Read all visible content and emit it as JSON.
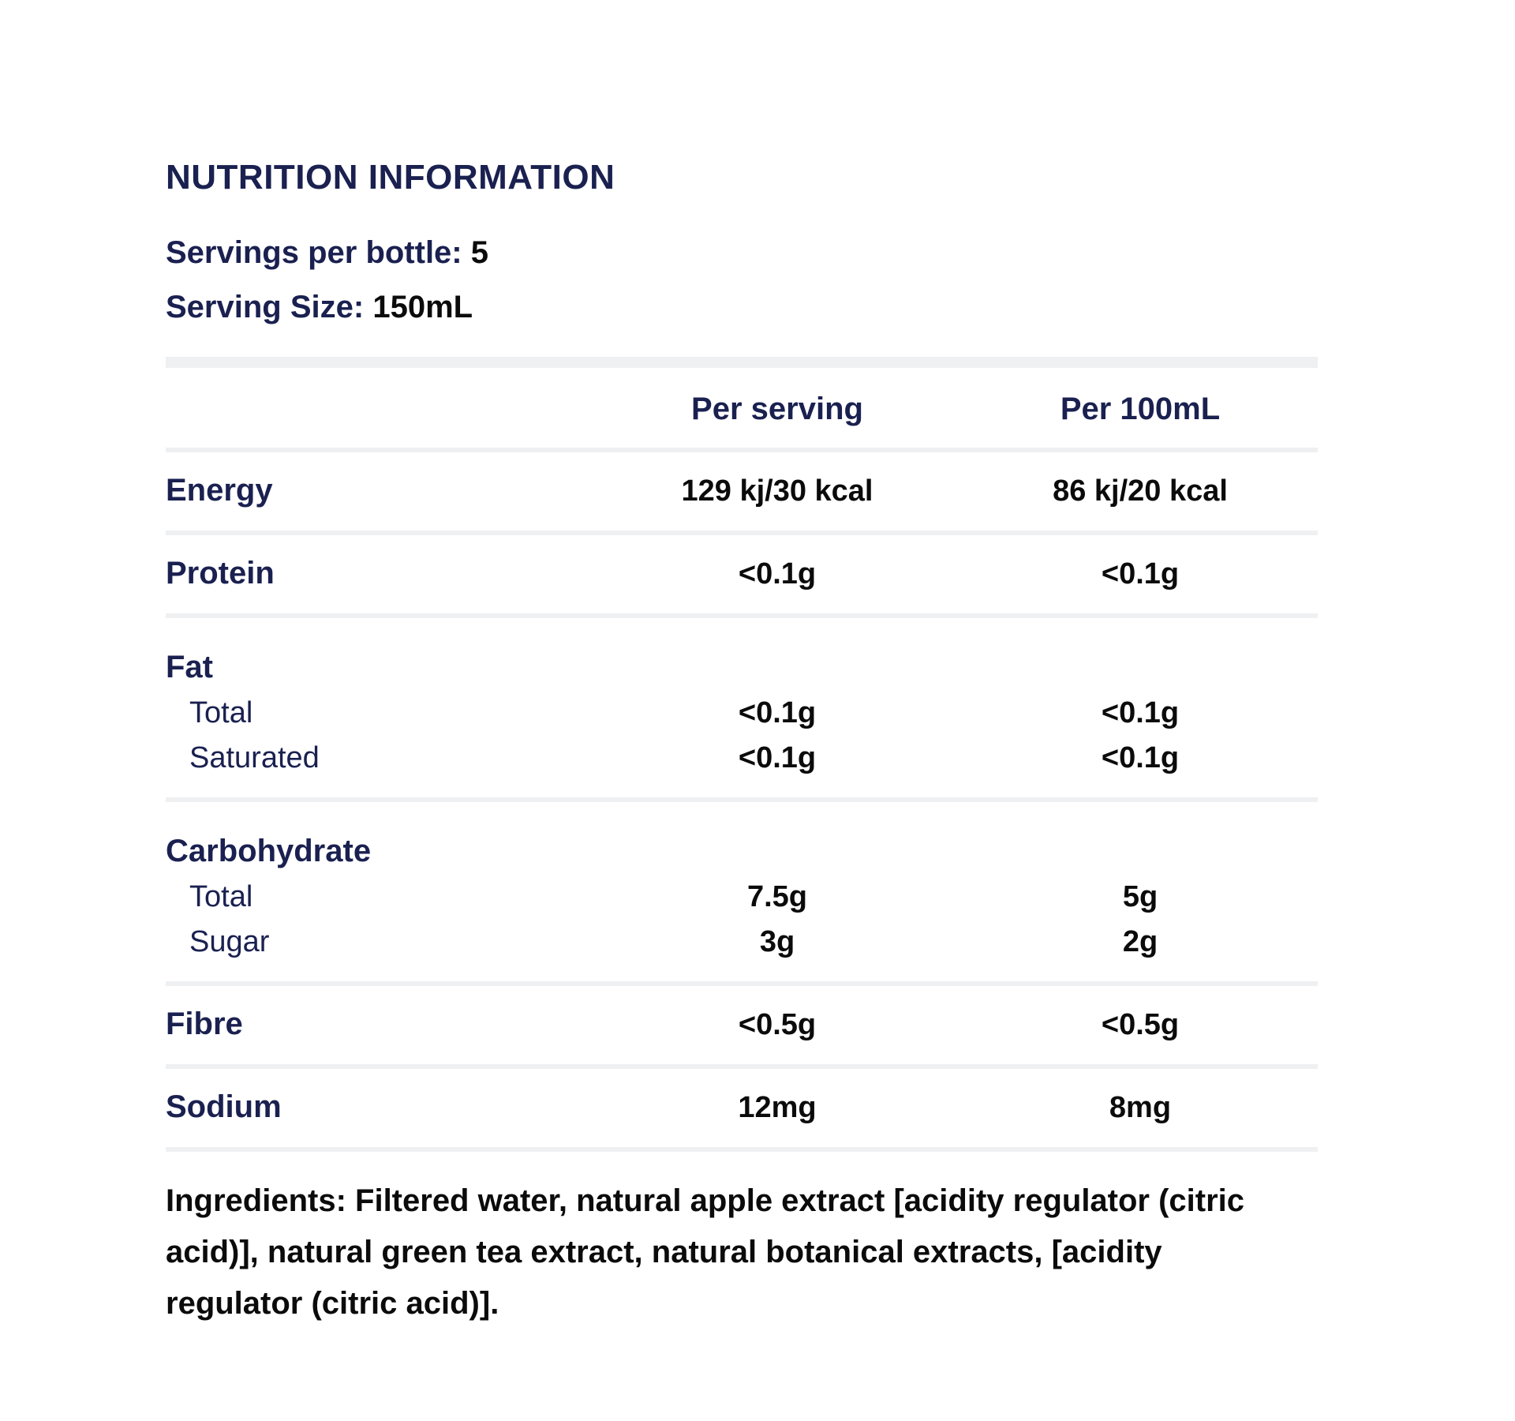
{
  "label": {
    "title": "NUTRITION INFORMATION",
    "servings": {
      "label": "Servings per bottle:",
      "value": "5"
    },
    "serving_size": {
      "label": "Serving Size:",
      "value": "150mL"
    },
    "table": {
      "columns": [
        "Per serving",
        "Per 100mL"
      ],
      "sections": [
        {
          "rows": [
            {
              "label": "Energy",
              "bold": true,
              "v1": "129 kj/30 kcal",
              "v2": "86 kj/20 kcal"
            }
          ]
        },
        {
          "rows": [
            {
              "label": "Protein",
              "bold": true,
              "v1": "<0.1g",
              "v2": "<0.1g"
            }
          ]
        },
        {
          "rows": [
            {
              "label": "Fat",
              "bold": true,
              "v1": "",
              "v2": ""
            },
            {
              "label": "Total",
              "indent": true,
              "v1": "<0.1g",
              "v2": "<0.1g"
            },
            {
              "label": "Saturated",
              "indent": true,
              "v1": "<0.1g",
              "v2": "<0.1g"
            }
          ]
        },
        {
          "rows": [
            {
              "label": "Carbohydrate",
              "bold": true,
              "v1": "",
              "v2": ""
            },
            {
              "label": "Total",
              "indent": true,
              "v1": "7.5g",
              "v2": "5g"
            },
            {
              "label": "Sugar",
              "indent": true,
              "v1": "3g",
              "v2": "2g"
            }
          ]
        },
        {
          "rows": [
            {
              "label": "Fibre",
              "bold": true,
              "v1": "<0.5g",
              "v2": "<0.5g"
            }
          ]
        },
        {
          "rows": [
            {
              "label": "Sodium",
              "bold": true,
              "v1": "12mg",
              "v2": "8mg"
            }
          ]
        }
      ]
    },
    "ingredients": "Ingredients: Filtered water, natural apple extract [acidity regulator (citric acid)], natural green tea extract, natural botanical extracts, [acidity regulator (citric acid)]."
  },
  "colors": {
    "navy": "#1A2150",
    "black": "#0b0b0b",
    "divider": "#EEF0F2",
    "background": "#ffffff"
  }
}
